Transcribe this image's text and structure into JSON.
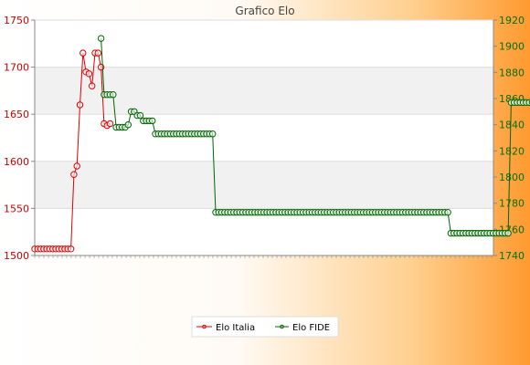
{
  "chart_data": {
    "type": "line",
    "title": "Grafico Elo",
    "y_left": {
      "range": [
        1500,
        1750
      ],
      "ticks": [
        1500,
        1550,
        1600,
        1650,
        1700,
        1750
      ],
      "color": "#cc0000"
    },
    "y_right": {
      "range": [
        1740,
        1920
      ],
      "ticks": [
        1740,
        1760,
        1780,
        1800,
        1820,
        1840,
        1860,
        1880,
        1900,
        1920
      ],
      "color": "#007000"
    },
    "grid": true,
    "legend": {
      "placement": "bottom-center",
      "entries": [
        "Elo Italia",
        "Elo FIDE"
      ]
    },
    "series": [
      {
        "name": "Elo Italia",
        "axis": "left",
        "color": "#dd0000",
        "values": [
          1507,
          1507,
          1507,
          1507,
          1507,
          1507,
          1507,
          1507,
          1507,
          1507,
          1507,
          1507,
          1507,
          1586,
          1595,
          1660,
          1715,
          1695,
          1693,
          1680,
          1715,
          1715,
          1700,
          1640,
          1638,
          1640
        ]
      },
      {
        "name": "Elo FIDE",
        "axis": "right",
        "color": "#006600",
        "offset": 22,
        "values": [
          1906,
          1863,
          1863,
          1863,
          1863,
          1838,
          1838,
          1838,
          1838,
          1840,
          1850,
          1850,
          1847,
          1847,
          1843,
          1843,
          1843,
          1843,
          1833,
          1833,
          1833,
          1833,
          1833,
          1833,
          1833,
          1833,
          1833,
          1833,
          1833,
          1833,
          1833,
          1833,
          1833,
          1833,
          1833,
          1833,
          1833,
          1833,
          1773,
          1773,
          1773,
          1773,
          1773,
          1773,
          1773,
          1773,
          1773,
          1773,
          1773,
          1773,
          1773,
          1773,
          1773,
          1773,
          1773,
          1773,
          1773,
          1773,
          1773,
          1773,
          1773,
          1773,
          1773,
          1773,
          1773,
          1773,
          1773,
          1773,
          1773,
          1773,
          1773,
          1773,
          1773,
          1773,
          1773,
          1773,
          1773,
          1773,
          1773,
          1773,
          1773,
          1773,
          1773,
          1773,
          1773,
          1773,
          1773,
          1773,
          1773,
          1773,
          1773,
          1773,
          1773,
          1773,
          1773,
          1773,
          1773,
          1773,
          1773,
          1773,
          1773,
          1773,
          1773,
          1773,
          1773,
          1773,
          1773,
          1773,
          1773,
          1773,
          1773,
          1773,
          1773,
          1773,
          1773,
          1773,
          1757,
          1757,
          1757,
          1757,
          1757,
          1757,
          1757,
          1757,
          1757,
          1757,
          1757,
          1757,
          1757,
          1757,
          1757,
          1757,
          1757,
          1757,
          1757,
          1757,
          1857,
          1857,
          1857,
          1857,
          1857,
          1857,
          1857,
          1857,
          1857,
          1857,
          1857,
          1857,
          1857,
          1857,
          1857
        ]
      }
    ]
  }
}
